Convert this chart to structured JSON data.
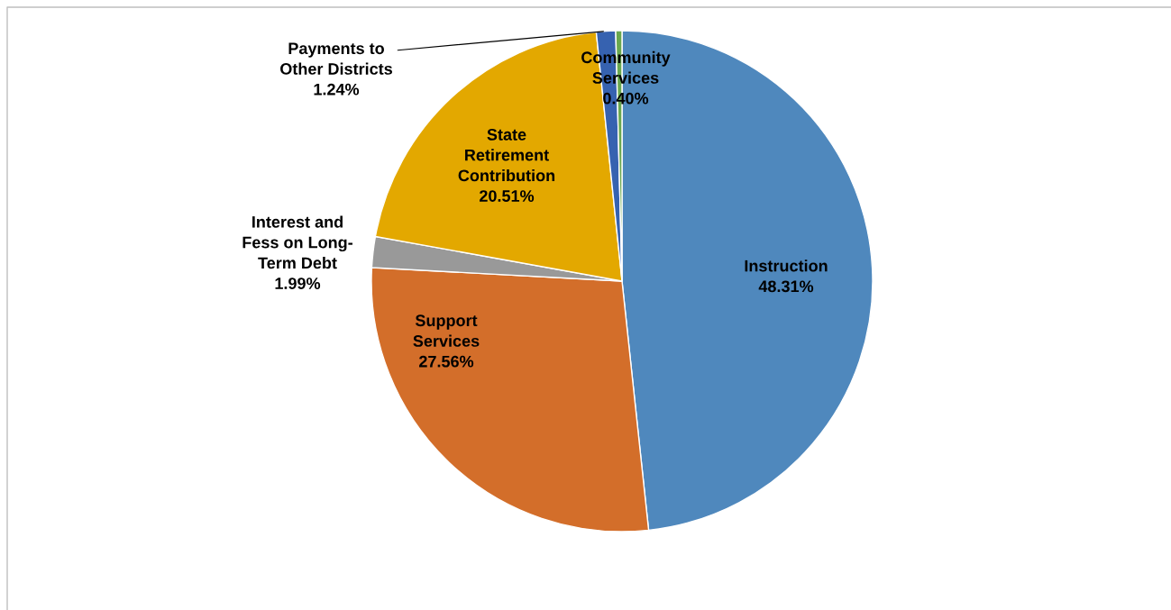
{
  "chart_data": {
    "type": "pie",
    "categories": [
      "Instruction",
      "Support\nServices",
      "Interest and\nFess on Long-\nTerm Debt",
      "State\nRetirement\nContribution",
      "Payments to\nOther Districts",
      "Community\nServices"
    ],
    "values": [
      48.31,
      27.56,
      1.99,
      20.51,
      1.24,
      0.4
    ],
    "value_labels": [
      "48.31%",
      "27.56%",
      "1.99%",
      "20.51%",
      "1.24%",
      "0.40%"
    ],
    "colors": [
      "#4f88bd",
      "#d36e2a",
      "#999999",
      "#e3a800",
      "#3662b0",
      "#6aa84f"
    ]
  }
}
